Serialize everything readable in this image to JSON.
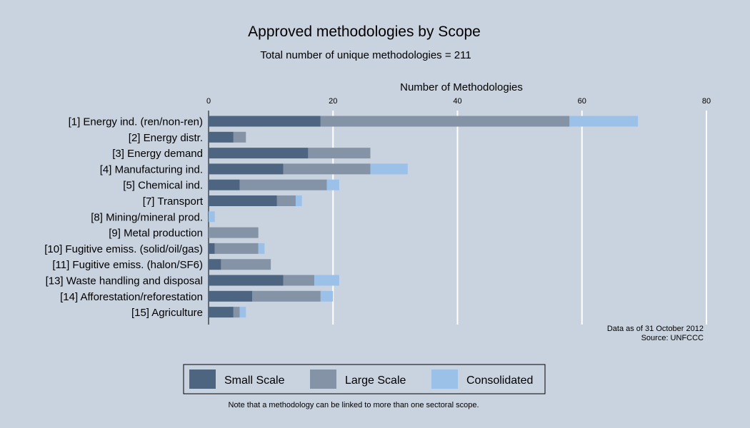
{
  "chart_data": {
    "type": "bar",
    "orientation": "horizontal",
    "stacked": true,
    "title": "Approved methodologies by Scope",
    "subtitle": "Total number of unique methodologies = 211",
    "xlabel": "Number of Methodologies",
    "xlim": [
      0,
      80
    ],
    "xticks": [
      "0",
      "20",
      "40",
      "60",
      "80"
    ],
    "xtick_values": [
      0,
      20,
      40,
      60,
      80
    ],
    "grid": true,
    "legend_position": "bottom",
    "categories": [
      "[1] Energy ind. (ren/non-ren)",
      "[2] Energy distr.",
      "[3] Energy demand",
      "[4] Manufacturing ind.",
      "[5] Chemical ind.",
      "[7] Transport",
      "[8] Mining/mineral prod.",
      "[9] Metal production",
      "[10] Fugitive emiss. (solid/oil/gas)",
      "[11] Fugitive emiss. (halon/SF6)",
      "[13] Waste handling and disposal",
      "[14] Afforestation/reforestation",
      "[15] Agriculture"
    ],
    "series": [
      {
        "name": "Small Scale",
        "color": "#4d6580",
        "values": [
          18,
          4,
          16,
          12,
          5,
          11,
          0,
          0,
          1,
          2,
          12,
          7,
          4
        ]
      },
      {
        "name": "Large Scale",
        "color": "#8593a6",
        "values": [
          40,
          2,
          10,
          14,
          14,
          3,
          0,
          8,
          7,
          8,
          5,
          11,
          1
        ]
      },
      {
        "name": "Consolidated",
        "color": "#9cc1e8",
        "values": [
          11,
          0,
          0,
          6,
          2,
          1,
          1,
          0,
          1,
          0,
          4,
          2,
          1
        ]
      }
    ],
    "annotations": [
      "Data as of 31 October 2012",
      "Source: UNFCCC"
    ],
    "note": "Note that a methodology can be linked to more than one sectoral scope."
  }
}
